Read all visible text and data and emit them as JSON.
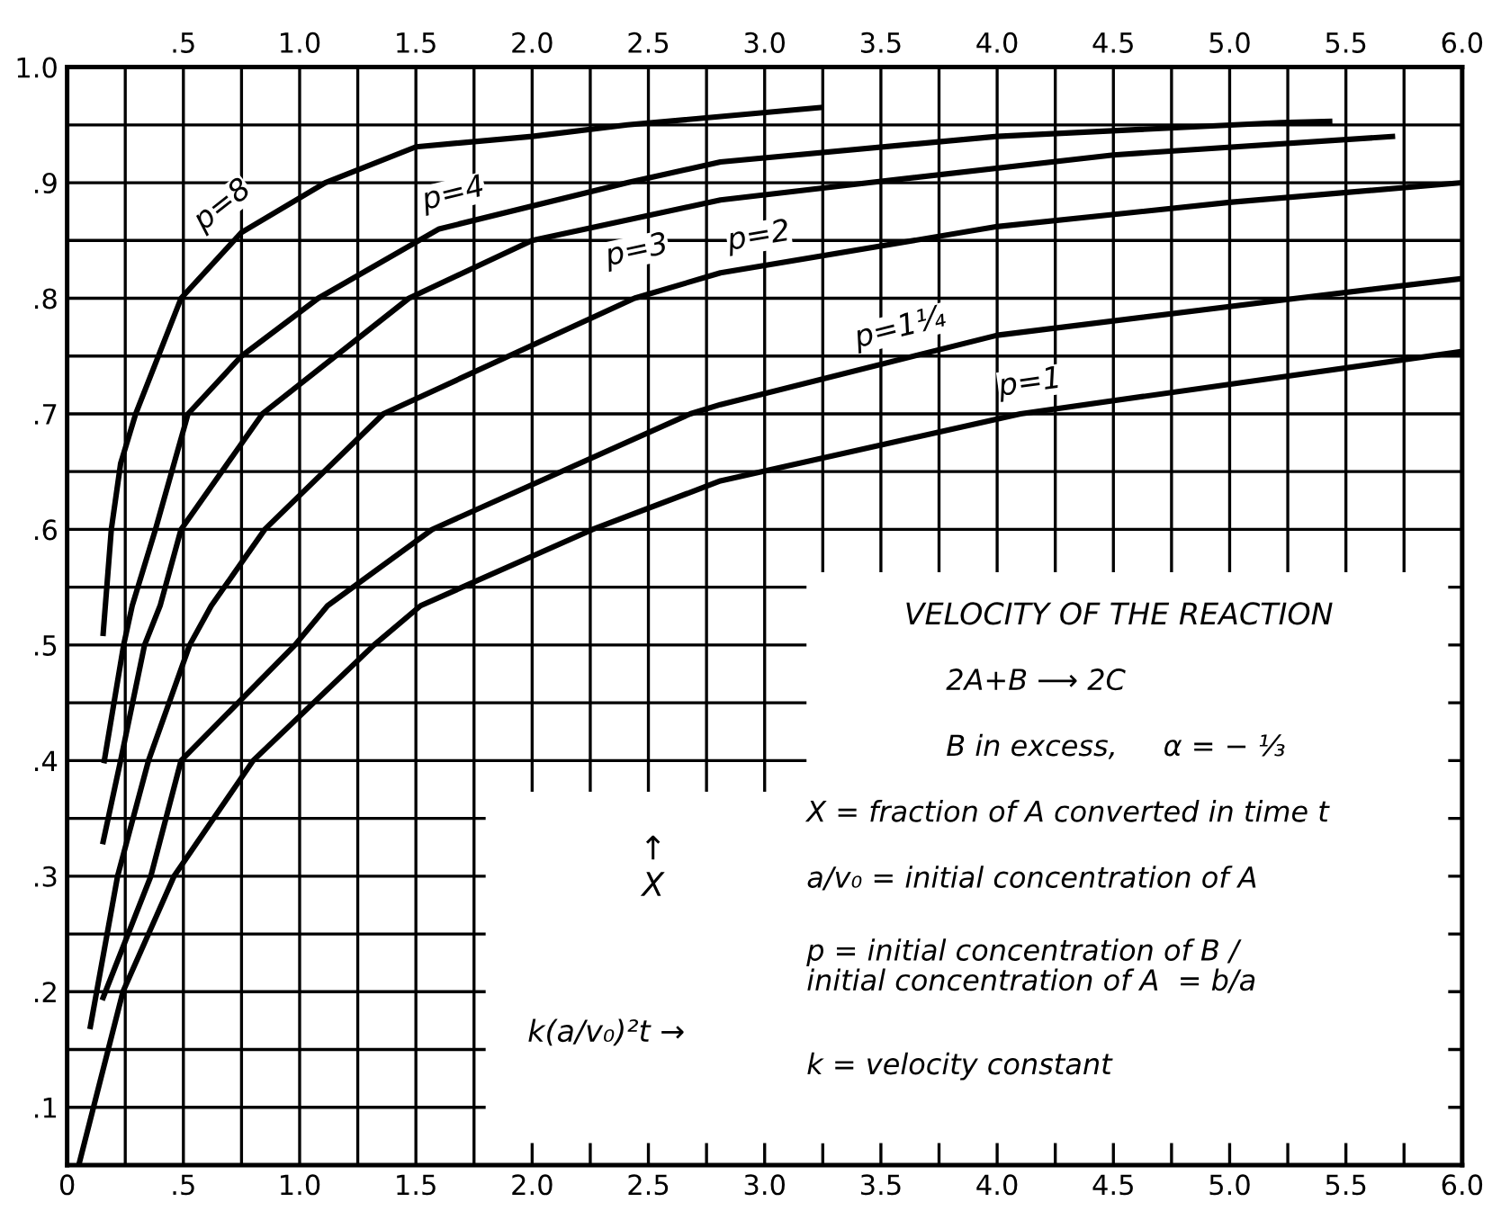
{
  "chart_data": {
    "type": "line",
    "xlabel": "k(a/v₀)²t →",
    "ylabel": "↑\nX",
    "xlim": [
      0,
      6.0
    ],
    "ylim": [
      0.05,
      1.0
    ],
    "xticks": [
      0,
      {
        "value": 0.5,
        "label": ".5"
      },
      {
        "value": 1.0,
        "label": "1.0"
      },
      {
        "value": 1.5,
        "label": "1.5"
      },
      {
        "value": 2.0,
        "label": "2.0"
      },
      {
        "value": 2.5,
        "label": "2.5"
      },
      {
        "value": 3.0,
        "label": "3.0"
      },
      {
        "value": 3.5,
        "label": "3.5"
      },
      {
        "value": 4.0,
        "label": "4.0"
      },
      {
        "value": 4.5,
        "label": "4.5"
      },
      {
        "value": 5.0,
        "label": "5.0"
      },
      {
        "value": 5.5,
        "label": "5.5"
      },
      {
        "value": 6.0,
        "label": "6.0"
      }
    ],
    "x2lim": [
      0,
      6.0
    ],
    "x2ticks": [
      {
        "value": 0.5,
        "label": ".5"
      },
      {
        "value": 1.0,
        "label": "1.0"
      },
      {
        "value": 1.5,
        "label": "1.5"
      },
      {
        "value": 2.0,
        "label": "2.0"
      },
      {
        "value": 2.5,
        "label": "2.5"
      },
      {
        "value": 3.0,
        "label": "3.0"
      },
      {
        "value": 3.5,
        "label": "3.5"
      },
      {
        "value": 4.0,
        "label": "4.0"
      },
      {
        "value": 4.5,
        "label": "4.5"
      },
      {
        "value": 5.0,
        "label": "5.0"
      },
      {
        "value": 5.5,
        "label": "5.5"
      },
      {
        "value": 6.0,
        "label": "6.0"
      }
    ],
    "yticks": [
      {
        "value": 0.1,
        "label": ".1"
      },
      {
        "value": 0.2,
        "label": ".2"
      },
      {
        "value": 0.3,
        "label": ".3"
      },
      {
        "value": 0.4,
        "label": ".4"
      },
      {
        "value": 0.5,
        "label": ".5"
      },
      {
        "value": 0.6,
        "label": ".6"
      },
      {
        "value": 0.7,
        "label": ".7"
      },
      {
        "value": 0.8,
        "label": ".8"
      },
      {
        "value": 0.9,
        "label": ".9"
      },
      {
        "value": 1.0,
        "label": "1.0"
      }
    ],
    "grid": true,
    "marker": "none",
    "line_style": "solid",
    "series": [
      {
        "name": "p=8",
        "color": "#000000",
        "x": [
          0.155,
          0.19,
          0.23,
          0.295,
          0.49,
          0.75,
          1.11,
          1.5,
          2.0,
          2.41,
          3.24
        ],
        "values": [
          0.51,
          0.6,
          0.657,
          0.7,
          0.8,
          0.857,
          0.9,
          0.931,
          0.94,
          0.95,
          0.965
        ]
      },
      {
        "name": "p=4",
        "color": "#000000",
        "x": [
          0.16,
          0.243,
          0.28,
          0.38,
          0.52,
          0.75,
          1.08,
          1.6,
          2.41,
          2.81,
          4.0,
          5.22,
          5.43
        ],
        "values": [
          0.4,
          0.5,
          0.534,
          0.6,
          0.7,
          0.75,
          0.8,
          0.86,
          0.9,
          0.918,
          0.94,
          0.952,
          0.953
        ]
      },
      {
        "name": "p=3",
        "color": "#000000",
        "x": [
          0.155,
          0.23,
          0.333,
          0.4,
          0.49,
          0.84,
          1.47,
          2.0,
          2.81,
          3.45,
          4.5,
          5.7
        ],
        "values": [
          0.33,
          0.4,
          0.5,
          0.534,
          0.6,
          0.7,
          0.8,
          0.85,
          0.885,
          0.9,
          0.924,
          0.94
        ]
      },
      {
        "name": "p=2",
        "color": "#000000",
        "x": [
          0.1,
          0.217,
          0.35,
          0.527,
          0.62,
          0.85,
          1.36,
          2.44,
          2.81,
          4.0,
          5.0,
          6.0
        ],
        "values": [
          0.17,
          0.3,
          0.4,
          0.5,
          0.534,
          0.6,
          0.7,
          0.8,
          0.822,
          0.862,
          0.883,
          0.9
        ]
      },
      {
        "name": "p=1¼",
        "color": "#000000",
        "x": [
          0.155,
          0.36,
          0.49,
          0.98,
          1.12,
          1.57,
          2.68,
          2.81,
          4.0,
          5.29,
          6.0
        ],
        "values": [
          0.195,
          0.3,
          0.4,
          0.5,
          0.534,
          0.6,
          0.7,
          0.708,
          0.768,
          0.8,
          0.817
        ]
      },
      {
        "name": "p=1",
        "color": "#000000",
        "x": [
          0.05,
          0.24,
          0.46,
          0.8,
          1.32,
          1.52,
          2.26,
          2.81,
          4.1,
          6.0
        ],
        "values": [
          0.05,
          0.2,
          0.3,
          0.4,
          0.5,
          0.534,
          0.6,
          0.642,
          0.7,
          0.754
        ]
      }
    ],
    "annotations": [
      "VELOCITY OF THE REACTION",
      "2A+B ⟶ 2C",
      "B in excess,     α = − ⅓",
      "X = fraction of A converted in time t",
      "a/v₀ = initial concentration of A",
      "p = initial concentration of B / initial concentration of A  = b/a",
      "k = velocity constant"
    ]
  }
}
